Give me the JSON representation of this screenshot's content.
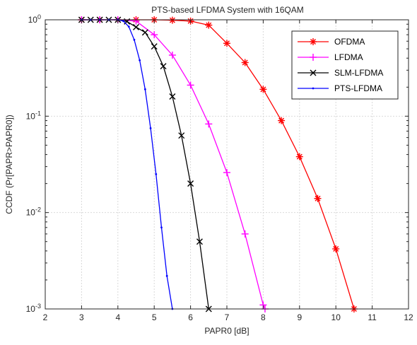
{
  "chart_data": {
    "type": "line",
    "title": "PTS-based LFDMA System with 16QAM",
    "xlabel": "PAPR0 [dB]",
    "ylabel": "CCDF (Pr[PAPR>PAPR0])",
    "xlim": [
      2,
      12
    ],
    "ylim": [
      0.001,
      1
    ],
    "yscale": "log",
    "grid": true,
    "legend_position": "top-right",
    "x_ticks": [
      "2",
      "3",
      "4",
      "5",
      "6",
      "7",
      "8",
      "9",
      "10",
      "11",
      "12"
    ],
    "y_ticks": [
      {
        "base": "10",
        "exp": "0",
        "value": 1
      },
      {
        "base": "10",
        "exp": "-1",
        "value": 0.1
      },
      {
        "base": "10",
        "exp": "-2",
        "value": 0.01
      },
      {
        "base": "10",
        "exp": "-3",
        "value": 0.001
      }
    ],
    "series": [
      {
        "name": "OFDMA",
        "color": "#ff0000",
        "marker": "asterisk",
        "points": [
          [
            3,
            1
          ],
          [
            3.5,
            1
          ],
          [
            4,
            1
          ],
          [
            4.5,
            1
          ],
          [
            5,
            1
          ],
          [
            5.5,
            0.99
          ],
          [
            6,
            0.97
          ],
          [
            6.5,
            0.88
          ],
          [
            7,
            0.57
          ],
          [
            7.5,
            0.36
          ],
          [
            8,
            0.19
          ],
          [
            8.5,
            0.09
          ],
          [
            9,
            0.038
          ],
          [
            9.5,
            0.014
          ],
          [
            10,
            0.0042
          ],
          [
            10.5,
            0.001
          ]
        ]
      },
      {
        "name": "LFDMA",
        "color": "#ff00ff",
        "marker": "plus",
        "points": [
          [
            3,
            1
          ],
          [
            3.5,
            1
          ],
          [
            4,
            1
          ],
          [
            4.5,
            0.97
          ],
          [
            5,
            0.7
          ],
          [
            5.5,
            0.43
          ],
          [
            6,
            0.21
          ],
          [
            6.5,
            0.083
          ],
          [
            7,
            0.026
          ],
          [
            7.5,
            0.006
          ],
          [
            8,
            0.0011
          ],
          [
            8.05,
            0.001
          ]
        ]
      },
      {
        "name": "SLM-LFDMA",
        "color": "#000000",
        "marker": "x",
        "points": [
          [
            3,
            1
          ],
          [
            3.25,
            1
          ],
          [
            3.5,
            1
          ],
          [
            3.75,
            1
          ],
          [
            4,
            1
          ],
          [
            4.25,
            0.96
          ],
          [
            4.5,
            0.84
          ],
          [
            4.75,
            0.74
          ],
          [
            5,
            0.53
          ],
          [
            5.25,
            0.33
          ],
          [
            5.5,
            0.16
          ],
          [
            5.75,
            0.063
          ],
          [
            6,
            0.02
          ],
          [
            6.25,
            0.005
          ],
          [
            6.5,
            0.001
          ]
        ]
      },
      {
        "name": "PTS-LFDMA",
        "color": "#0000ff",
        "marker": "dot",
        "points": [
          [
            3,
            1
          ],
          [
            3.25,
            1
          ],
          [
            3.5,
            1
          ],
          [
            3.75,
            1
          ],
          [
            4,
            1
          ],
          [
            4.15,
            0.97
          ],
          [
            4.3,
            0.85
          ],
          [
            4.45,
            0.62
          ],
          [
            4.6,
            0.38
          ],
          [
            4.75,
            0.19
          ],
          [
            4.9,
            0.075
          ],
          [
            5.05,
            0.025
          ],
          [
            5.2,
            0.007
          ],
          [
            5.35,
            0.0022
          ],
          [
            5.5,
            0.001
          ]
        ]
      }
    ]
  }
}
